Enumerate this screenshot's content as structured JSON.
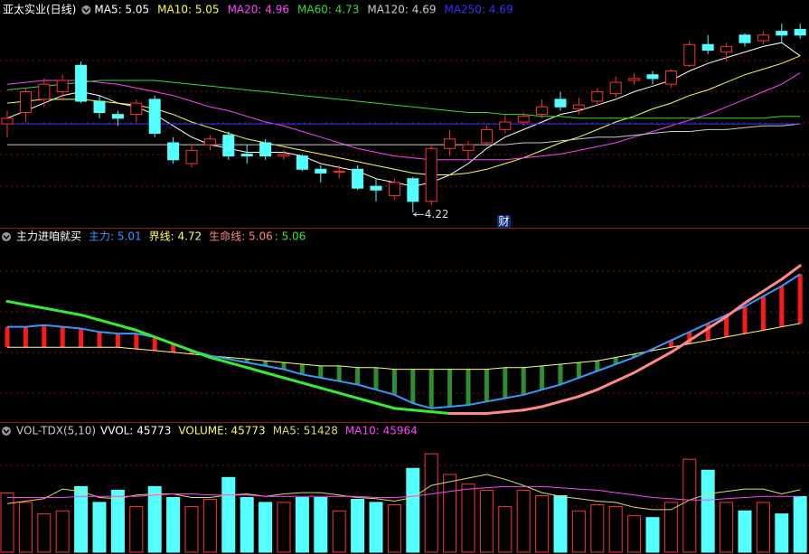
{
  "chart_data": [
    {
      "type": "candlestick",
      "title": "亚太实业(日线)",
      "up_color": "#ff3232",
      "down_color": "#54ffff",
      "ylim": [
        4.15,
        5.25
      ],
      "open": [
        4.69,
        4.75,
        4.82,
        4.86,
        5.0,
        4.81,
        4.74,
        4.74,
        4.82,
        4.59,
        4.48,
        4.58,
        4.63,
        4.53,
        4.59,
        4.52,
        4.52,
        4.45,
        4.44,
        4.45,
        4.36,
        4.31,
        4.4,
        4.28,
        4.56,
        4.55,
        4.59,
        4.66,
        4.7,
        4.74,
        4.82,
        4.77,
        4.81,
        4.85,
        4.92,
        4.95,
        4.9,
        5.0,
        5.11,
        5.07,
        5.16,
        5.13,
        5.18,
        5.19
      ],
      "high": [
        4.76,
        4.88,
        4.93,
        4.95,
        5.02,
        4.84,
        4.76,
        4.82,
        4.84,
        4.62,
        4.58,
        4.63,
        4.65,
        4.58,
        4.61,
        4.55,
        4.53,
        4.47,
        4.47,
        4.47,
        4.4,
        4.4,
        4.41,
        4.58,
        4.66,
        4.6,
        4.68,
        4.74,
        4.75,
        4.82,
        4.86,
        4.83,
        4.88,
        4.94,
        4.96,
        4.97,
        4.98,
        5.13,
        5.16,
        5.12,
        5.17,
        5.18,
        5.22,
        5.22
      ],
      "low": [
        4.62,
        4.7,
        4.78,
        4.82,
        4.8,
        4.72,
        4.68,
        4.7,
        4.62,
        4.48,
        4.46,
        4.55,
        4.5,
        4.48,
        4.5,
        4.5,
        4.44,
        4.38,
        4.4,
        4.34,
        4.28,
        4.29,
        4.22,
        4.26,
        4.52,
        4.5,
        4.57,
        4.64,
        4.68,
        4.72,
        4.76,
        4.74,
        4.79,
        4.83,
        4.9,
        4.9,
        4.88,
        4.99,
        5.06,
        5.02,
        5.1,
        5.11,
        5.12,
        5.14
      ],
      "close": [
        4.72,
        4.86,
        4.9,
        4.92,
        4.81,
        4.75,
        4.72,
        4.8,
        4.64,
        4.5,
        4.55,
        4.61,
        4.52,
        4.52,
        4.52,
        4.53,
        4.45,
        4.43,
        4.44,
        4.35,
        4.34,
        4.38,
        4.28,
        4.56,
        4.61,
        4.58,
        4.66,
        4.7,
        4.73,
        4.78,
        4.78,
        4.79,
        4.86,
        4.91,
        4.93,
        4.93,
        4.97,
        5.11,
        5.08,
        5.1,
        5.12,
        5.16,
        5.16,
        5.16
      ],
      "series": [
        {
          "name": "MA5: 5.05",
          "color": "#ffffff",
          "values": [
            4.72,
            4.76,
            4.8,
            4.84,
            4.86,
            4.84,
            4.8,
            4.78,
            4.74,
            4.68,
            4.62,
            4.58,
            4.56,
            4.54,
            4.54,
            4.54,
            4.52,
            4.48,
            4.46,
            4.44,
            4.4,
            4.38,
            4.36,
            4.38,
            4.42,
            4.48,
            4.56,
            4.62,
            4.66,
            4.7,
            4.74,
            4.76,
            4.79,
            4.82,
            4.86,
            4.89,
            4.92,
            4.97,
            5.01,
            5.04,
            5.07,
            5.1,
            5.12,
            5.05
          ]
        },
        {
          "name": "MA10: 5.05",
          "color": "#ffff44",
          "values": [
            4.8,
            4.81,
            4.82,
            4.82,
            4.82,
            4.81,
            4.8,
            4.79,
            4.77,
            4.74,
            4.7,
            4.67,
            4.64,
            4.61,
            4.59,
            4.57,
            4.55,
            4.53,
            4.51,
            4.49,
            4.47,
            4.45,
            4.43,
            4.42,
            4.42,
            4.43,
            4.45,
            4.48,
            4.51,
            4.55,
            4.59,
            4.62,
            4.66,
            4.7,
            4.73,
            4.77,
            4.8,
            4.84,
            4.87,
            4.91,
            4.95,
            4.98,
            5.01,
            5.05
          ]
        },
        {
          "name": "MA20: 4.96",
          "color": "#ff44ff",
          "values": [
            4.9,
            4.91,
            4.92,
            4.92,
            4.92,
            4.91,
            4.9,
            4.88,
            4.86,
            4.84,
            4.81,
            4.78,
            4.76,
            4.73,
            4.7,
            4.68,
            4.65,
            4.62,
            4.59,
            4.56,
            4.54,
            4.52,
            4.51,
            4.5,
            4.5,
            4.5,
            4.5,
            4.5,
            4.51,
            4.52,
            4.53,
            4.55,
            4.57,
            4.59,
            4.62,
            4.65,
            4.68,
            4.71,
            4.74,
            4.78,
            4.82,
            4.86,
            4.9,
            4.96
          ]
        },
        {
          "name": "MA60: 4.73",
          "color": "#33dd33",
          "values": [
            4.87,
            4.88,
            4.89,
            4.9,
            4.91,
            4.92,
            4.92,
            4.92,
            4.92,
            4.91,
            4.9,
            4.89,
            4.88,
            4.87,
            4.86,
            4.85,
            4.84,
            4.83,
            4.82,
            4.81,
            4.8,
            4.79,
            4.78,
            4.77,
            4.76,
            4.75,
            4.75,
            4.74,
            4.74,
            4.73,
            4.73,
            4.72,
            4.72,
            4.72,
            4.72,
            4.72,
            4.72,
            4.72,
            4.72,
            4.72,
            4.72,
            4.72,
            4.73,
            4.73
          ]
        },
        {
          "name": "MA120: 4.69",
          "color": "#cccccc",
          "values": [
            4.58,
            4.58,
            4.58,
            4.58,
            4.58,
            4.58,
            4.58,
            4.58,
            4.58,
            4.58,
            4.58,
            4.58,
            4.58,
            4.58,
            4.58,
            4.58,
            4.58,
            4.58,
            4.58,
            4.58,
            4.58,
            4.58,
            4.58,
            4.58,
            4.58,
            4.58,
            4.58,
            4.58,
            4.59,
            4.59,
            4.6,
            4.61,
            4.62,
            4.62,
            4.63,
            4.64,
            4.65,
            4.65,
            4.66,
            4.66,
            4.67,
            4.68,
            4.68,
            4.69
          ]
        },
        {
          "name": "MA250: 4.69",
          "color": "#3333ff",
          "values": [
            4.69,
            4.69,
            4.69,
            4.69,
            4.69,
            4.69,
            4.69,
            4.69,
            4.69,
            4.69,
            4.69,
            4.69,
            4.69,
            4.69,
            4.69,
            4.69,
            4.69,
            4.69,
            4.69,
            4.69,
            4.69,
            4.69,
            4.69,
            4.69,
            4.69,
            4.69,
            4.69,
            4.69,
            4.69,
            4.69,
            4.69,
            4.69,
            4.69,
            4.69,
            4.69,
            4.69,
            4.69,
            4.69,
            4.69,
            4.69,
            4.69,
            4.69,
            4.69,
            4.69
          ]
        }
      ],
      "annotations": [
        {
          "text": "4.22"
        },
        {
          "text": "财"
        }
      ]
    },
    {
      "type": "indicator",
      "title": "主力进咱就买",
      "ylim": [
        4.15,
        5.23
      ],
      "bar_up_color": "#ff1a1a",
      "bar_down_color": "#2f8f2f",
      "series": [
        {
          "name": "主力: 5.01",
          "color": "#3399ff",
          "values": [
            4.7,
            4.7,
            4.71,
            4.7,
            4.69,
            4.67,
            4.66,
            4.66,
            4.64,
            4.6,
            4.56,
            4.53,
            4.51,
            4.49,
            4.47,
            4.45,
            4.42,
            4.4,
            4.38,
            4.36,
            4.33,
            4.3,
            4.25,
            4.22,
            4.23,
            4.24,
            4.26,
            4.28,
            4.3,
            4.33,
            4.36,
            4.4,
            4.44,
            4.48,
            4.52,
            4.57,
            4.62,
            4.67,
            4.72,
            4.77,
            4.82,
            4.88,
            4.94,
            5.01
          ]
        },
        {
          "name": "界线: 4.72",
          "color": "#ffff66",
          "values": [
            4.58,
            4.58,
            4.58,
            4.58,
            4.58,
            4.58,
            4.58,
            4.57,
            4.56,
            4.55,
            4.54,
            4.53,
            4.52,
            4.51,
            4.5,
            4.49,
            4.48,
            4.47,
            4.47,
            4.46,
            4.46,
            4.45,
            4.45,
            4.45,
            4.45,
            4.45,
            4.45,
            4.46,
            4.46,
            4.47,
            4.48,
            4.49,
            4.5,
            4.52,
            4.54,
            4.56,
            4.58,
            4.6,
            4.62,
            4.64,
            4.66,
            4.68,
            4.7,
            4.72
          ]
        },
        {
          "name": "生命线: 5.06",
          "color": "#ff8888",
          "down_label": ": 5.06",
          "down_color": "#33ee33",
          "values": [
            4.85,
            4.83,
            4.81,
            4.79,
            4.77,
            4.74,
            4.71,
            4.68,
            4.64,
            4.6,
            4.56,
            4.52,
            4.49,
            4.46,
            4.43,
            4.4,
            4.37,
            4.34,
            4.31,
            4.28,
            4.25,
            4.22,
            4.21,
            4.2,
            4.19,
            4.19,
            4.19,
            4.2,
            4.21,
            4.23,
            4.26,
            4.29,
            4.33,
            4.38,
            4.43,
            4.49,
            4.55,
            4.62,
            4.69,
            4.76,
            4.84,
            4.91,
            4.98,
            5.06
          ]
        }
      ]
    },
    {
      "type": "volume",
      "title": "VOL-TDX(5,10)",
      "label": "VVOL: 45773",
      "label_color": "#ffffff",
      "ylim": [
        0,
        90000
      ],
      "volume": {
        "name": "VOLUME: 45773",
        "color": "#ffff44",
        "values": [
          48750,
          41000,
          31500,
          34000,
          54000,
          41000,
          51000,
          37500,
          54000,
          45000,
          37500,
          43500,
          61500,
          45000,
          41000,
          41000,
          45000,
          45000,
          34000,
          43500,
          41000,
          39000,
          69000,
          81000,
          64000,
          56000,
          51000,
          37500,
          51000,
          46500,
          46500,
          34000,
          39000,
          37500,
          30000,
          28500,
          41000,
          76500,
          67500,
          41000,
          34000,
          41000,
          31500,
          45773
        ]
      },
      "series": [
        {
          "name": "MA5: 51428",
          "color": "#dddd66",
          "values": [
            40000,
            42000,
            44000,
            52000,
            50000,
            45000,
            44000,
            47000,
            48000,
            48000,
            45000,
            45000,
            47000,
            48000,
            46000,
            48000,
            49000,
            49000,
            47000,
            45000,
            44000,
            42000,
            45000,
            55000,
            58000,
            61000,
            64000,
            60000,
            55000,
            49000,
            46000,
            44000,
            42000,
            41000,
            37000,
            35000,
            35000,
            43000,
            48000,
            50000,
            52000,
            52000,
            48000,
            51428
          ]
        },
        {
          "name": "MA10: 45964",
          "color": "#ff44ff",
          "values": [
            45000,
            45000,
            45000,
            45000,
            46000,
            46000,
            46000,
            46000,
            47000,
            48000,
            48000,
            47000,
            47000,
            47000,
            46000,
            46000,
            46000,
            46000,
            46000,
            46000,
            45000,
            45000,
            46000,
            48000,
            50000,
            52000,
            53000,
            54000,
            54000,
            54000,
            53000,
            52000,
            51000,
            49000,
            47000,
            45000,
            44000,
            43000,
            43000,
            44000,
            45000,
            46000,
            46000,
            45964
          ]
        }
      ]
    }
  ]
}
